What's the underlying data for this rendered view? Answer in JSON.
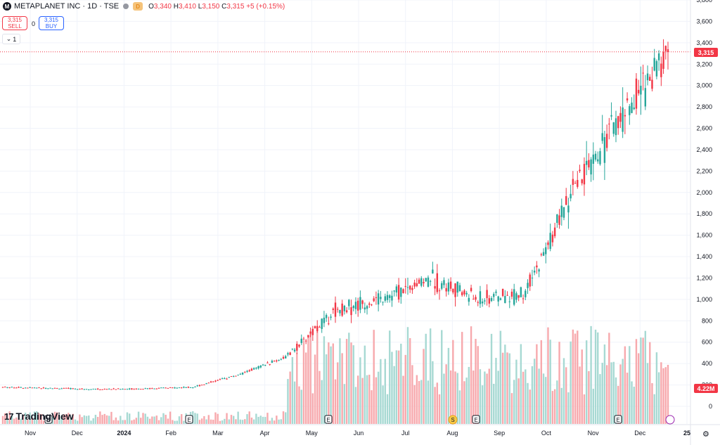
{
  "header": {
    "symbol": "METAPLANET INC · 1D · TSE",
    "logo_letter": "M",
    "badge": "D",
    "o_label": "O",
    "o_value": "3,340",
    "h_label": "H",
    "h_value": "3,410",
    "l_label": "L",
    "l_value": "3,150",
    "c_label": "C",
    "c_value": "3,315",
    "change": "+5 (+0.15%)"
  },
  "trade": {
    "sell_price": "3,315",
    "sell_label": "SELL",
    "spread": "0",
    "buy_price": "3,315",
    "buy_label": "BUY",
    "collapse_label": "1"
  },
  "branding": {
    "name": "TradingView",
    "mark": "17"
  },
  "last_price_label": "3,315",
  "volume_label": "4.22M",
  "colors": {
    "up": "#26a69a",
    "down": "#f23645",
    "vol_up": "#a7d9d3",
    "vol_down": "#f7a9ad",
    "grid": "#f0f3fa"
  },
  "chart_data": {
    "type": "candlestick",
    "title": "METAPLANET INC · 1D · TSE",
    "y_ticks": [
      "3,800",
      "3,600",
      "3,400",
      "3,200",
      "3,000",
      "2,800",
      "2,600",
      "2,400",
      "2,200",
      "2,000",
      "1,800",
      "1,600",
      "1,400",
      "1,200",
      "1,000",
      "800",
      "600",
      "400",
      "200",
      "0"
    ],
    "y_range": [
      0,
      3800
    ],
    "x_ticks": [
      "Nov",
      "Dec",
      "2024",
      "Feb",
      "Mar",
      "Apr",
      "May",
      "Jun",
      "Jul",
      "Aug",
      "Sep",
      "Oct",
      "Nov",
      "Dec",
      "25"
    ],
    "event_markers": [
      {
        "label": "E",
        "date": "2023-11"
      },
      {
        "label": "E",
        "date": "2024-02"
      },
      {
        "label": "E",
        "date": "2024-05"
      },
      {
        "label": "S",
        "date": "2024-07"
      },
      {
        "label": "E",
        "date": "2024-08"
      },
      {
        "label": "E",
        "date": "2024-11"
      }
    ],
    "last": {
      "open": 3340,
      "high": 3410,
      "low": 3150,
      "close": 3315,
      "volume": "4.22M"
    },
    "monthly_closes": [
      {
        "month": "Nov",
        "close": 180
      },
      {
        "month": "Dec",
        "close": 170
      },
      {
        "month": "2024",
        "close": 160
      },
      {
        "month": "Feb",
        "close": 165
      },
      {
        "month": "Mar",
        "close": 180
      },
      {
        "month": "Apr",
        "close": 300
      },
      {
        "month": "May",
        "close": 470
      },
      {
        "month": "Jun",
        "close": 900
      },
      {
        "month": "Jul",
        "close": 1000
      },
      {
        "month": "Aug",
        "close": 1200
      },
      {
        "month": "Sep",
        "close": 1000
      },
      {
        "month": "Oct",
        "close": 1050
      },
      {
        "month": "Nov",
        "close": 2000
      },
      {
        "month": "Dec",
        "close": 2700
      }
    ]
  }
}
